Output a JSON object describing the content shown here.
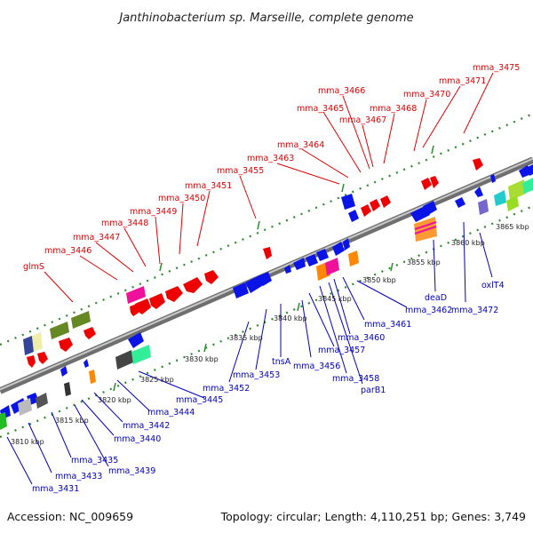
{
  "title": "Janthinobacterium sp. Marseille, complete genome",
  "footer": {
    "accession": "Accession: NC_009659",
    "summary": "Topology: circular; Length: 4,110,251 bp; Genes: 3,749"
  },
  "colors": {
    "forward_label": "#dd0000",
    "reverse_label": "#0000bb",
    "backbone": "#8a8a8a",
    "guide_dots": "#2a8a2a"
  },
  "ticks": [
    "3810 kbp",
    "3815 kbp",
    "3820 kbp",
    "3825 kbp",
    "3830 kbp",
    "3835 kbp",
    "3840 kbp",
    "3845 kbp",
    "3850 kbp",
    "3855 kbp",
    "3860 kbp",
    "3865 kbp"
  ],
  "forward_genes": [
    "glmS",
    "mma_3446",
    "mma_3447",
    "mma_3448",
    "mma_3449",
    "mma_3450",
    "mma_3451",
    "mma_3455",
    "mma_3463",
    "mma_3464",
    "mma_3465",
    "mma_3466",
    "mma_3467",
    "mma_3468",
    "mma_3470",
    "mma_3471",
    "mma_3475"
  ],
  "reverse_genes": [
    "mma_3431",
    "mma_3433",
    "mma_3435",
    "mma_3439",
    "mma_3440",
    "mma_3442",
    "mma_3444",
    "mma_3445",
    "mma_3452",
    "mma_3453",
    "tnsA",
    "mma_3456",
    "mma_3457",
    "mma_3458",
    "parB1",
    "mma_3460",
    "mma_3461",
    "mma_3462",
    "deaD",
    "mma_3472",
    "oxlT4"
  ]
}
